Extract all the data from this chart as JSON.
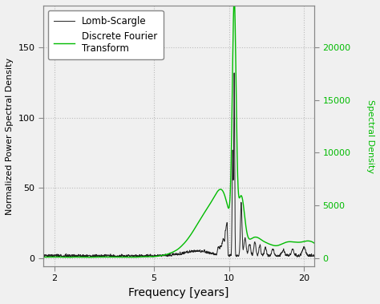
{
  "xlabel": "Frequency [years]",
  "ylabel_left": "Normalized Power Spectral Density",
  "ylabel_right": "Spectral Density",
  "ylabel_right_color": "#00bb00",
  "legend_entries": [
    "Lomb-Scargle",
    "Discrete Fourier\nTransform"
  ],
  "ls_color": "#222222",
  "dft_color": "#00bb00",
  "xlim_log": [
    0.26,
    1.34
  ],
  "ylim_left": [
    -6,
    180
  ],
  "ylim_right": [
    -800,
    24000
  ],
  "xticks": [
    2,
    5,
    10,
    20
  ],
  "yticks_left": [
    0,
    50,
    100,
    150
  ],
  "yticks_right": [
    0,
    5000,
    10000,
    15000,
    20000
  ],
  "bg_color": "#f0f0f0",
  "plot_bg": "#f0f0f0",
  "grid_color": "#bbbbbb",
  "figsize": [
    4.74,
    3.79
  ],
  "dpi": 100
}
